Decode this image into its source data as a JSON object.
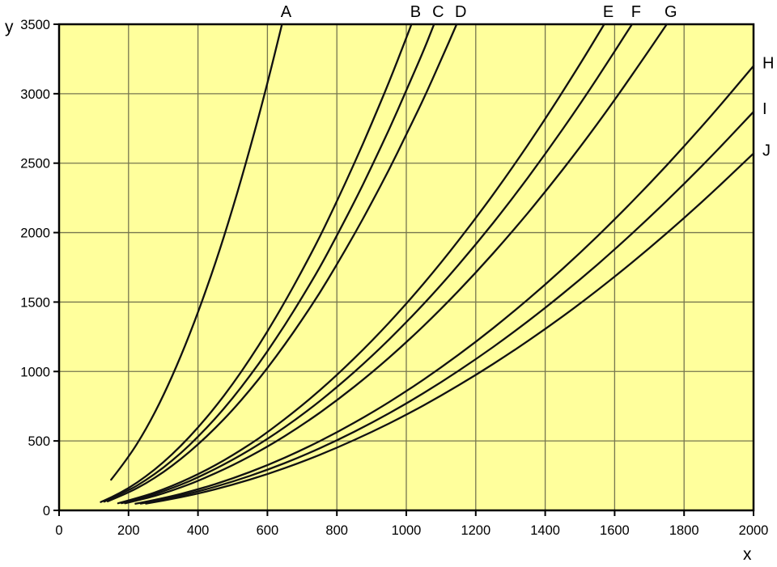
{
  "page": {
    "background": "#ffffff"
  },
  "chart_data": {
    "type": "line",
    "title": "",
    "xlabel": "x",
    "ylabel": "y",
    "xlim": [
      0,
      2000
    ],
    "ylim": [
      0,
      3500
    ],
    "xticks": [
      0,
      200,
      400,
      600,
      800,
      1000,
      1200,
      1400,
      1600,
      1800,
      2000
    ],
    "yticks": [
      0,
      500,
      1000,
      1500,
      2000,
      2500,
      3000,
      3500
    ],
    "grid": true,
    "legend_position": "curve-end-labels",
    "plot_background": "#FFFF9C",
    "grid_color": "#76764F",
    "axis_color": "#000000",
    "curve_color": "#111111",
    "series": [
      {
        "name": "A",
        "label_side": "top",
        "points": [
          [
            150,
            221
          ],
          [
            200,
            381
          ],
          [
            250,
            582
          ],
          [
            300,
            823
          ],
          [
            350,
            1104
          ],
          [
            400,
            1422
          ],
          [
            450,
            1777
          ],
          [
            500,
            2172
          ],
          [
            550,
            2604
          ],
          [
            600,
            3073
          ],
          [
            642,
            3500
          ]
        ]
      },
      {
        "name": "B",
        "label_side": "top",
        "points": [
          [
            120,
            60
          ],
          [
            150,
            92
          ],
          [
            200,
            159
          ],
          [
            250,
            244
          ],
          [
            300,
            344
          ],
          [
            350,
            462
          ],
          [
            400,
            595
          ],
          [
            450,
            744
          ],
          [
            500,
            909
          ],
          [
            550,
            1090
          ],
          [
            600,
            1287
          ],
          [
            650,
            1500
          ],
          [
            700,
            1726
          ],
          [
            750,
            1964
          ],
          [
            800,
            2225
          ],
          [
            850,
            2496
          ],
          [
            900,
            2783
          ],
          [
            950,
            3081
          ],
          [
            1000,
            3402
          ],
          [
            1015,
            3500
          ]
        ]
      },
      {
        "name": "C",
        "label_side": "top",
        "points": [
          [
            130,
            63
          ],
          [
            200,
            142
          ],
          [
            250,
            217
          ],
          [
            300,
            306
          ],
          [
            350,
            410
          ],
          [
            400,
            529
          ],
          [
            450,
            661
          ],
          [
            500,
            808
          ],
          [
            550,
            969
          ],
          [
            600,
            1144
          ],
          [
            650,
            1333
          ],
          [
            700,
            1534
          ],
          [
            750,
            1745
          ],
          [
            800,
            1978
          ],
          [
            850,
            2218
          ],
          [
            900,
            2474
          ],
          [
            950,
            2739
          ],
          [
            1000,
            3023
          ],
          [
            1050,
            3311
          ],
          [
            1080,
            3500
          ]
        ]
      },
      {
        "name": "D",
        "label_side": "top",
        "points": [
          [
            140,
            65
          ],
          [
            200,
            127
          ],
          [
            250,
            194
          ],
          [
            300,
            274
          ],
          [
            350,
            368
          ],
          [
            400,
            474
          ],
          [
            450,
            592
          ],
          [
            500,
            723
          ],
          [
            550,
            867
          ],
          [
            600,
            1024
          ],
          [
            650,
            1193
          ],
          [
            700,
            1373
          ],
          [
            750,
            1562
          ],
          [
            800,
            1770
          ],
          [
            850,
            1985
          ],
          [
            900,
            2214
          ],
          [
            950,
            2451
          ],
          [
            1000,
            2706
          ],
          [
            1050,
            2963
          ],
          [
            1100,
            3243
          ],
          [
            1145,
            3500
          ]
        ]
      },
      {
        "name": "E",
        "label_side": "top",
        "points": [
          [
            170,
            51
          ],
          [
            250,
            106
          ],
          [
            300,
            151
          ],
          [
            350,
            202
          ],
          [
            400,
            260
          ],
          [
            450,
            325
          ],
          [
            500,
            397
          ],
          [
            550,
            476
          ],
          [
            600,
            562
          ],
          [
            700,
            754
          ],
          [
            800,
            972
          ],
          [
            900,
            1216
          ],
          [
            1000,
            1486
          ],
          [
            1100,
            1781
          ],
          [
            1200,
            2102
          ],
          [
            1300,
            2447
          ],
          [
            1400,
            2816
          ],
          [
            1500,
            3210
          ],
          [
            1570,
            3500
          ]
        ]
      },
      {
        "name": "F",
        "label_side": "top",
        "points": [
          [
            180,
            52
          ],
          [
            250,
            97
          ],
          [
            300,
            137
          ],
          [
            350,
            184
          ],
          [
            400,
            237
          ],
          [
            500,
            362
          ],
          [
            600,
            512
          ],
          [
            700,
            686
          ],
          [
            800,
            885
          ],
          [
            900,
            1107
          ],
          [
            1000,
            1353
          ],
          [
            1100,
            1621
          ],
          [
            1200,
            1913
          ],
          [
            1300,
            2227
          ],
          [
            1400,
            2564
          ],
          [
            1500,
            2922
          ],
          [
            1600,
            3304
          ],
          [
            1650,
            3500
          ]
        ]
      },
      {
        "name": "G",
        "label_side": "top",
        "points": [
          [
            190,
            51
          ],
          [
            250,
            87
          ],
          [
            300,
            122
          ],
          [
            350,
            164
          ],
          [
            400,
            212
          ],
          [
            500,
            323
          ],
          [
            600,
            457
          ],
          [
            700,
            613
          ],
          [
            800,
            791
          ],
          [
            900,
            989
          ],
          [
            1000,
            1209
          ],
          [
            1100,
            1449
          ],
          [
            1200,
            1710
          ],
          [
            1300,
            1991
          ],
          [
            1400,
            2292
          ],
          [
            1500,
            2612
          ],
          [
            1600,
            2954
          ],
          [
            1700,
            3315
          ],
          [
            1750,
            3500
          ]
        ]
      },
      {
        "name": "H",
        "label_side": "right",
        "points": [
          [
            220,
            48
          ],
          [
            300,
            87
          ],
          [
            400,
            150
          ],
          [
            500,
            229
          ],
          [
            600,
            324
          ],
          [
            700,
            435
          ],
          [
            800,
            561
          ],
          [
            900,
            701
          ],
          [
            1000,
            857
          ],
          [
            1100,
            1028
          ],
          [
            1200,
            1212
          ],
          [
            1300,
            1412
          ],
          [
            1400,
            1625
          ],
          [
            1500,
            1852
          ],
          [
            1600,
            2094
          ],
          [
            1700,
            2350
          ],
          [
            1800,
            2620
          ],
          [
            1900,
            2903
          ],
          [
            2000,
            3200
          ]
        ]
      },
      {
        "name": "I",
        "label_side": "right",
        "points": [
          [
            235,
            49
          ],
          [
            300,
            78
          ],
          [
            400,
            135
          ],
          [
            500,
            206
          ],
          [
            600,
            291
          ],
          [
            700,
            390
          ],
          [
            800,
            503
          ],
          [
            900,
            629
          ],
          [
            1000,
            769
          ],
          [
            1100,
            921
          ],
          [
            1200,
            1087
          ],
          [
            1300,
            1266
          ],
          [
            1400,
            1457
          ],
          [
            1500,
            1661
          ],
          [
            1600,
            1878
          ],
          [
            1700,
            2108
          ],
          [
            1800,
            2350
          ],
          [
            1900,
            2604
          ],
          [
            2000,
            2870
          ]
        ]
      },
      {
        "name": "J",
        "label_side": "right",
        "points": [
          [
            250,
            49
          ],
          [
            300,
            70
          ],
          [
            400,
            120
          ],
          [
            500,
            184
          ],
          [
            600,
            260
          ],
          [
            700,
            349
          ],
          [
            800,
            450
          ],
          [
            900,
            563
          ],
          [
            1000,
            688
          ],
          [
            1100,
            825
          ],
          [
            1200,
            974
          ],
          [
            1300,
            1134
          ],
          [
            1400,
            1305
          ],
          [
            1500,
            1487
          ],
          [
            1600,
            1682
          ],
          [
            1700,
            1887
          ],
          [
            1800,
            2104
          ],
          [
            1900,
            2332
          ],
          [
            2000,
            2570
          ]
        ]
      }
    ]
  }
}
